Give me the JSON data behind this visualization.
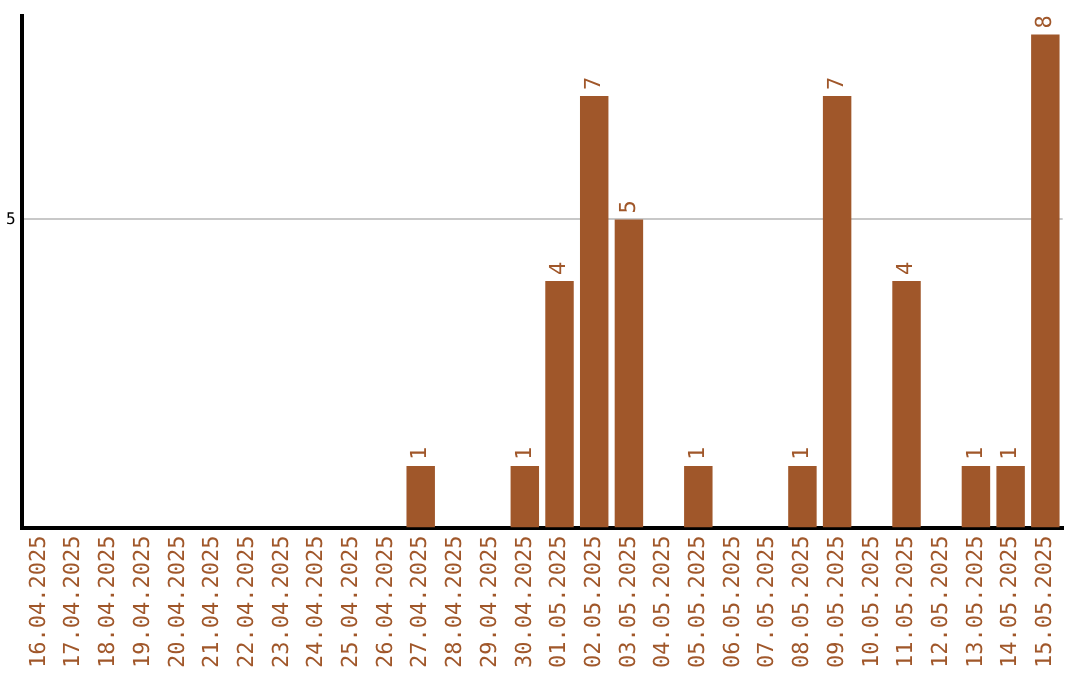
{
  "chart_data": {
    "type": "bar",
    "categories": [
      "16.04.2025",
      "17.04.2025",
      "18.04.2025",
      "19.04.2025",
      "20.04.2025",
      "21.04.2025",
      "22.04.2025",
      "23.04.2025",
      "24.04.2025",
      "25.04.2025",
      "26.04.2025",
      "27.04.2025",
      "28.04.2025",
      "29.04.2025",
      "30.04.2025",
      "01.05.2025",
      "02.05.2025",
      "03.05.2025",
      "04.05.2025",
      "05.05.2025",
      "06.05.2025",
      "07.05.2025",
      "08.05.2025",
      "09.05.2025",
      "10.05.2025",
      "11.05.2025",
      "12.05.2025",
      "13.05.2025",
      "14.05.2025",
      "15.05.2025"
    ],
    "values": [
      0,
      0,
      0,
      0,
      0,
      0,
      0,
      0,
      0,
      0,
      0,
      1,
      0,
      0,
      1,
      4,
      7,
      5,
      0,
      1,
      0,
      0,
      1,
      7,
      0,
      4,
      0,
      1,
      1,
      8
    ],
    "value_labels": [
      null,
      null,
      null,
      null,
      null,
      null,
      null,
      null,
      null,
      null,
      null,
      "1",
      null,
      null,
      "1",
      "4",
      "7",
      "5",
      null,
      "1",
      null,
      null,
      "1",
      "7",
      null,
      "4",
      null,
      "1",
      "1",
      "8"
    ],
    "color": "#a0572a",
    "ylim": [
      0,
      8.3
    ],
    "yticks": [
      5
    ],
    "grid": "y",
    "legend": false
  }
}
